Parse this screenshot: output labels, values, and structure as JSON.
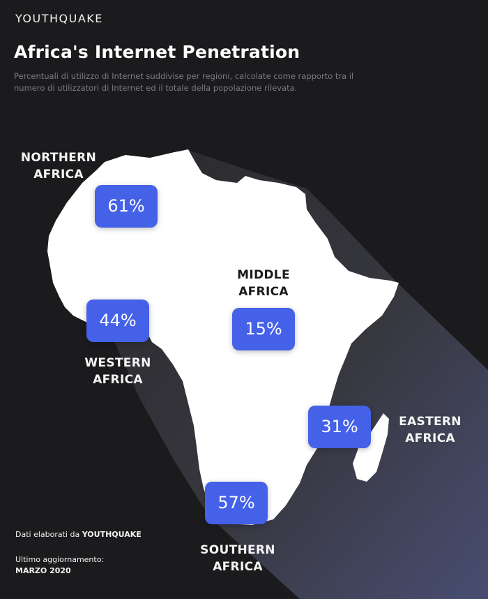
{
  "brand": "YOUTHQUAKE",
  "title": "Africa's Internet Penetration",
  "subtitle": "Percentuali di utilizzo di Internet suddivise per regioni, calcolate come rapporto tra il numero di utilizzatori di Internet ed il totale della popolazione rilevata.",
  "regions": [
    {
      "line1": "NORTHERN",
      "line2": "AFRICA",
      "value": "61%"
    },
    {
      "line1": "WESTERN",
      "line2": "AFRICA",
      "value": "44%"
    },
    {
      "line1": "MIDDLE",
      "line2": "AFRICA",
      "value": "15%"
    },
    {
      "line1": "EASTERN",
      "line2": "AFRICA",
      "value": "31%"
    },
    {
      "line1": "SOUTHERN",
      "line2": "AFRICA",
      "value": "57%"
    }
  ],
  "footer": {
    "credit_prefix": "Dati elaborati da",
    "credit_brand": "YOUTHQUAKE",
    "updated_label": "Ultimo aggiornamento:",
    "updated_date": "MARZO 2020"
  },
  "colors": {
    "background": "#1b1b1d",
    "map": "#ffffff",
    "badge": "#4461e8",
    "shadow_glow": "#4a4e7a"
  }
}
